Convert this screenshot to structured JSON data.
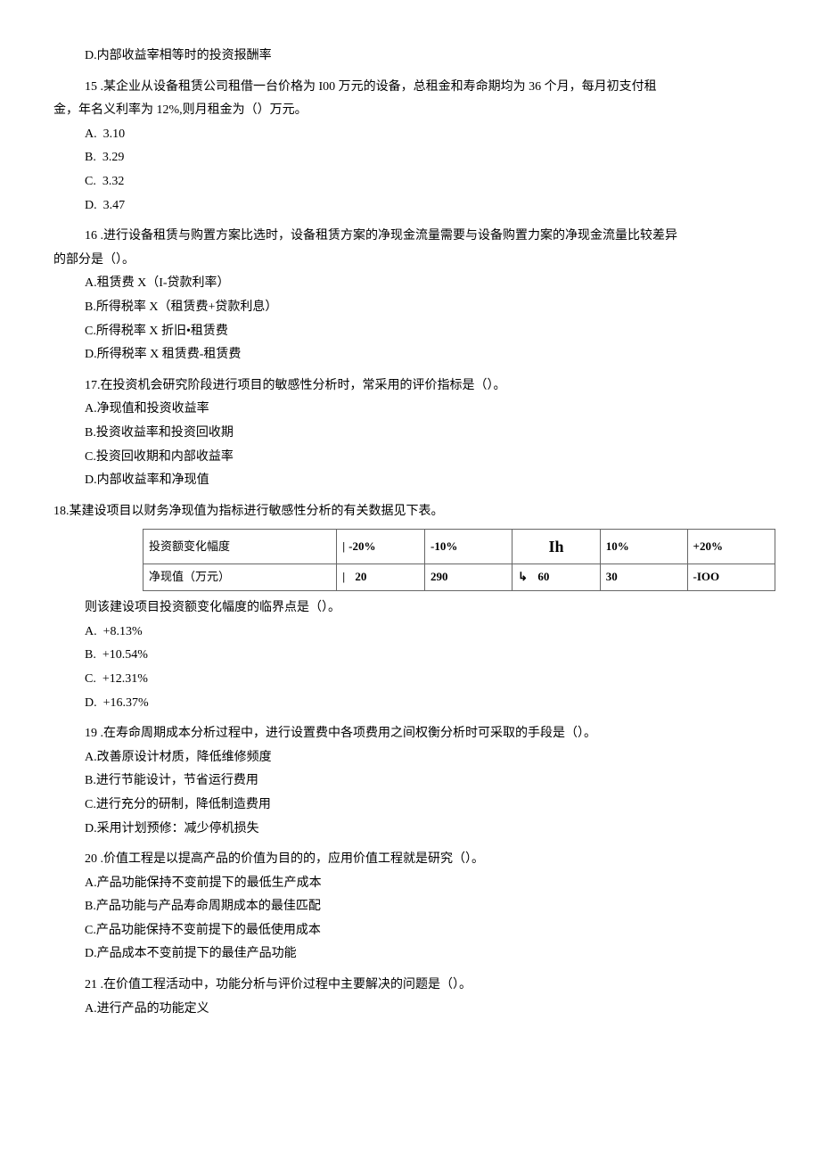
{
  "q14": {
    "optD": "D.内部收益宰相等时的投资报酬率"
  },
  "q15": {
    "stem_p1": "15 .某企业从设备租赁公司租借一台价格为 I00 万元的设备，总租金和寿命期均为 36 个月，每月初支付租",
    "stem_p2": "金，年名义利率为 12%,则月租金为（）万元。",
    "optA_label": "A.",
    "optA_val": "3.10",
    "optB_label": "B.",
    "optB_val": "3.29",
    "optC_label": "C.",
    "optC_val": "3.32",
    "optD_label": "D.",
    "optD_val": "3.47"
  },
  "q16": {
    "stem_p1": "16 .进行设备租赁与购置方案比选时，设备租赁方案的净现金流量需要与设备购置力案的净现金流量比较差异",
    "stem_p2": "的部分是（）。",
    "optA": "A.租赁费 X（I-贷款利率）",
    "optB": "B.所得税率 X（租赁费+贷款利息）",
    "optC": "C.所得税率 X 折旧•租赁费",
    "optD": "D.所得税率 X 租赁费-租赁费"
  },
  "q17": {
    "stem": "17.在投资机会研究阶段进行项目的敏感性分析时，常采用的评价指标是（）。",
    "optA": "A.净现值和投资收益率",
    "optB": "B.投资收益率和投资回收期",
    "optC": "C.投资回收期和内部收益率",
    "optD": "D.内部收益率和净现值"
  },
  "q18": {
    "stem": "18.某建设项目以财务净现值为指标进行敏感性分析的有关数据见下表。",
    "table": {
      "row1_label": "投资额变化幅度",
      "row2_label": "净现值（万元）",
      "headers": [
        "-20%",
        "-10%",
        "",
        "10%",
        "+20%"
      ],
      "header_mid_glyph": "Ih",
      "values_r2": [
        "20",
        "290",
        "60",
        "30",
        "-IOO"
      ],
      "row2_pre_glyph": "|",
      "row2_mid_glyph": "↳"
    },
    "tail": "则该建设项目投资额变化幅度的临界点是（）。",
    "optA_label": "A.",
    "optA_val": "+8.13%",
    "optB_label": "B.",
    "optB_val": "+10.54%",
    "optC_label": "C.",
    "optC_val": "+12.31%",
    "optD_label": "D.",
    "optD_val": "+16.37%"
  },
  "q19": {
    "stem": "19 .在寿命周期成本分析过程中，进行设置费中各项费用之间权衡分析时可采取的手段是（）。",
    "optA": "A.改善原设计材质，降低维修频度",
    "optB": "B.进行节能设计，节省运行费用",
    "optC": "C.进行充分的研制，降低制造费用",
    "optD": "D.采用计划预修：减少停机损失"
  },
  "q20": {
    "stem": "20 .价值工程是以提高产品的价值为目的的，应用价值工程就是研究（）。",
    "optA": "A.产品功能保持不变前提下的最低生产成本",
    "optB": "B.产品功能与产品寿命周期成本的最佳匹配",
    "optC": "C.产品功能保持不变前提下的最低使用成本",
    "optD": "D.产品成本不变前提下的最佳产品功能"
  },
  "q21": {
    "stem": "21 .在价值工程活动中，功能分析与评价过程中主要解决的问题是（）。",
    "optA": "A.进行产品的功能定义"
  }
}
